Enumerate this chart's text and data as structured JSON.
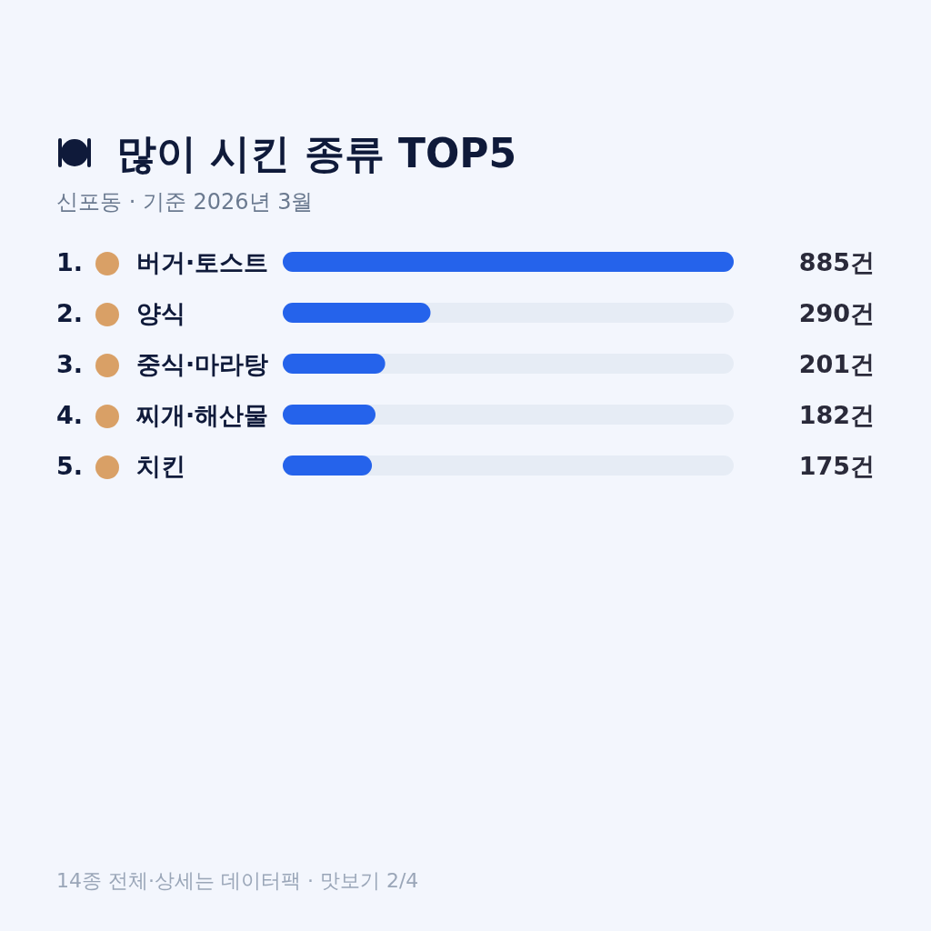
{
  "chart_data": {
    "type": "bar",
    "orientation": "horizontal",
    "title": "많이 시킨 종류 TOP5",
    "subtitle": "신포동 · 기준 2026년 3월",
    "categories": [
      "1. 버거·토스트",
      "2. 양식",
      "3. 중식·마라탕",
      "4. 찌개·해산물",
      "5. 치킨"
    ],
    "values": [
      885,
      290,
      201,
      182,
      175
    ],
    "color": "#2563eb",
    "xlim": [
      0,
      885
    ],
    "value_labels": [
      "885건",
      "290건",
      "201건",
      "182건",
      "175건"
    ],
    "annotations": [
      "14종 전체·상세는 데이터팩 · 맛보기 2/4"
    ]
  }
}
